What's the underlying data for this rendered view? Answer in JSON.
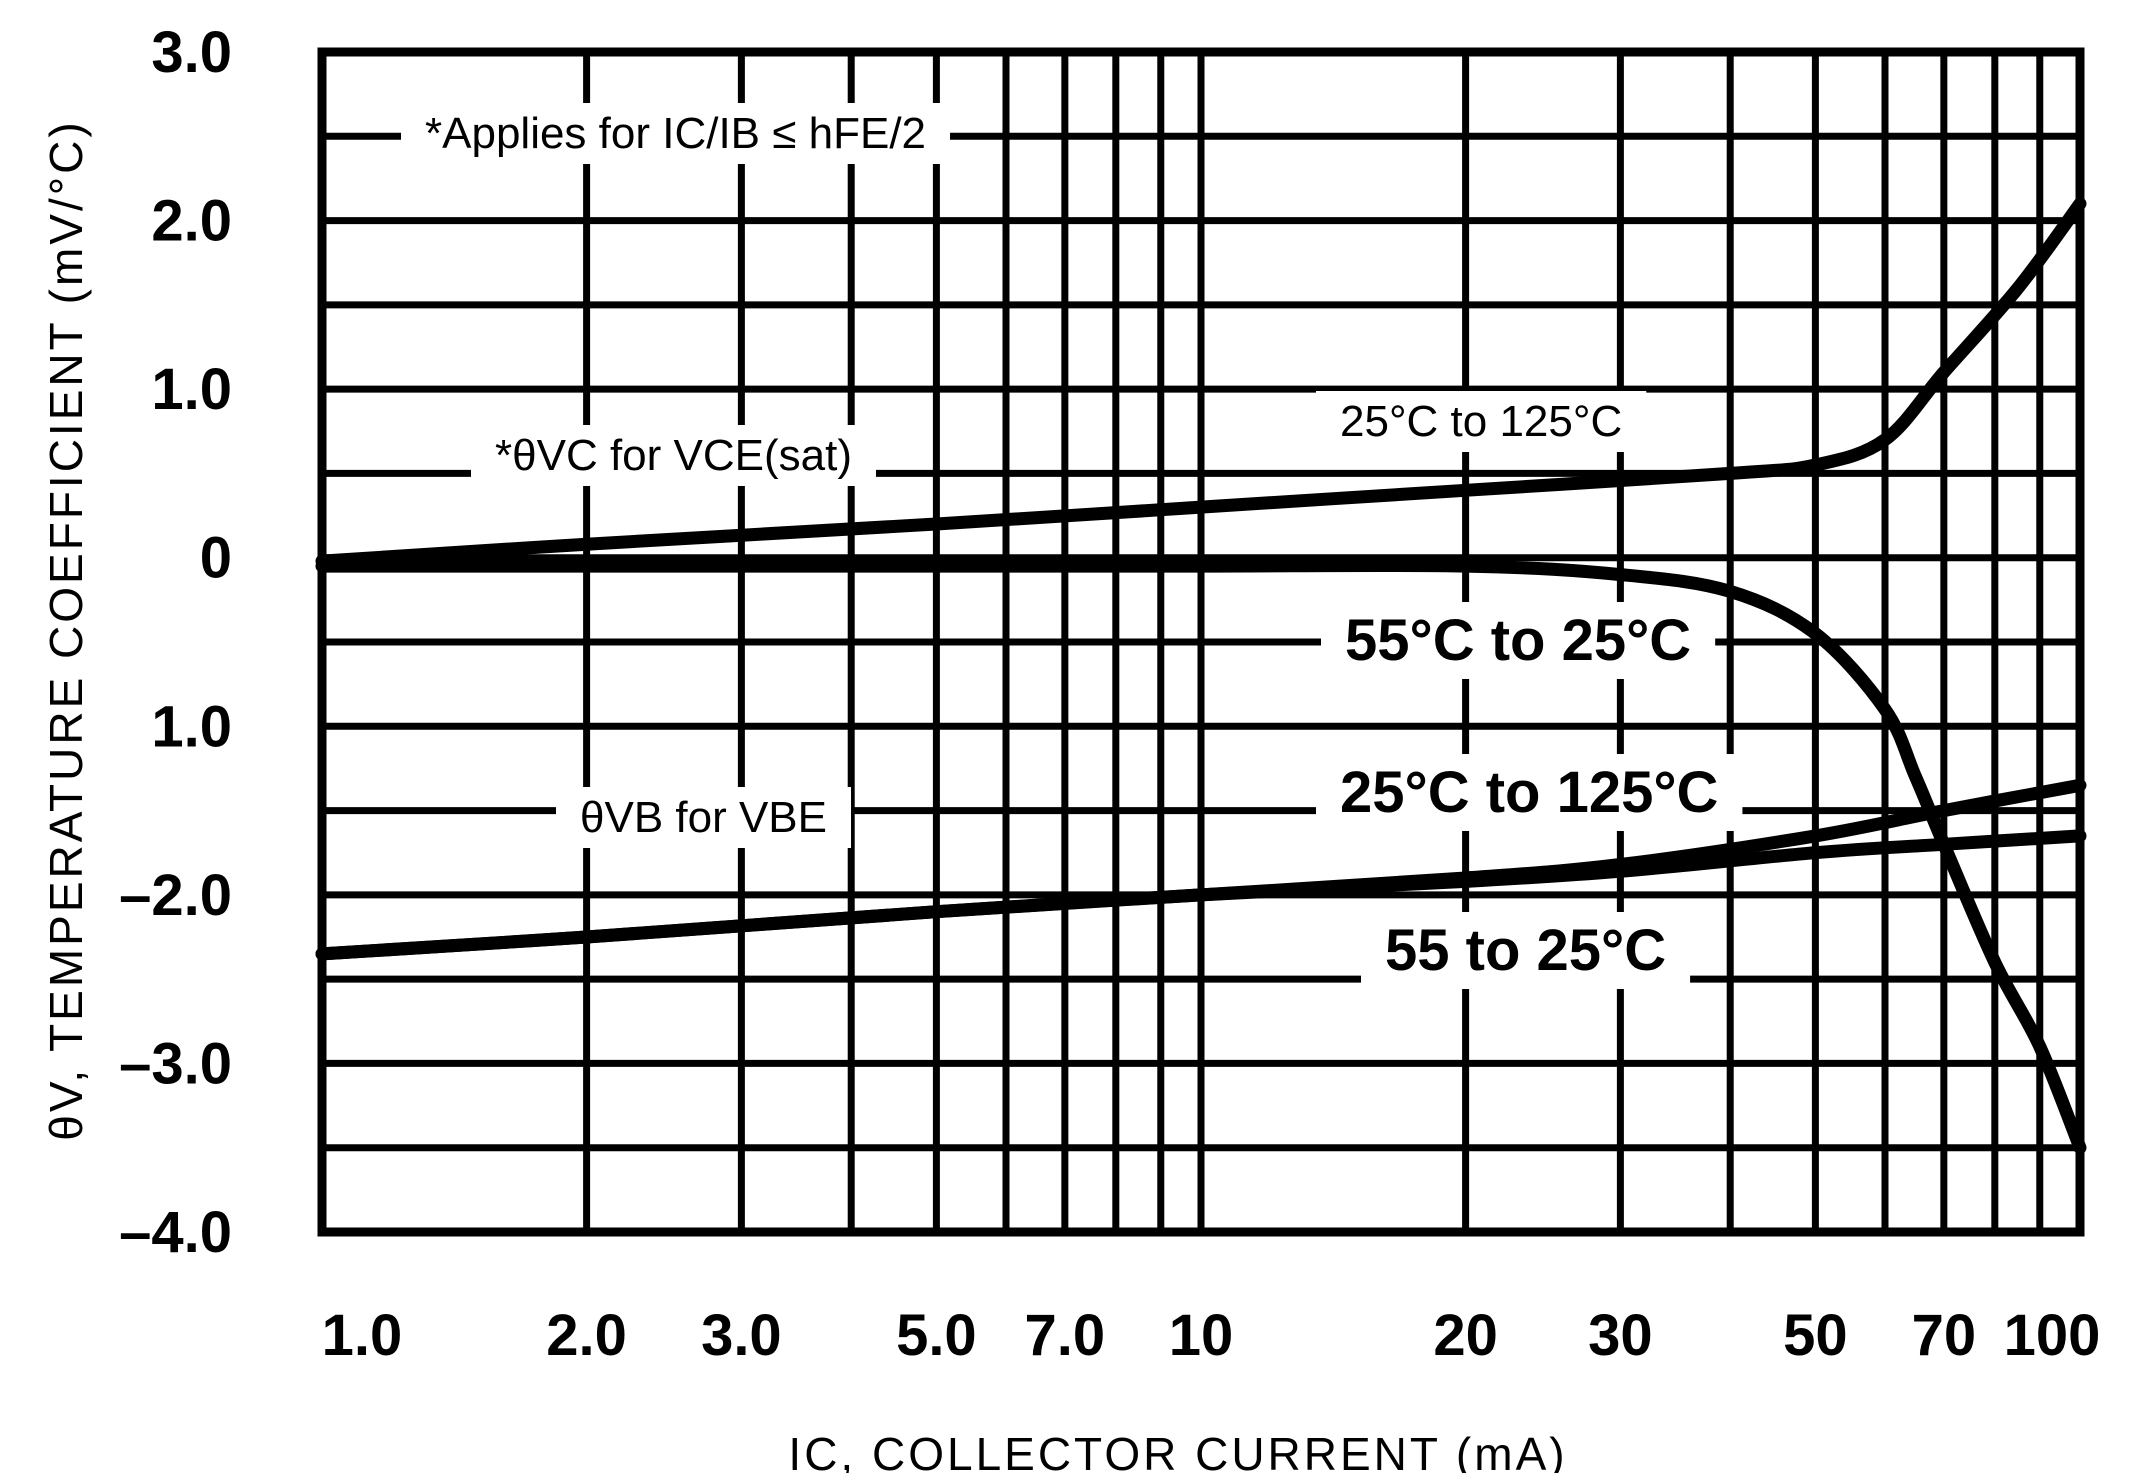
{
  "chart_data": {
    "type": "line",
    "title": "",
    "xlabel": "IC, COLLECTOR CURRENT (mA)",
    "ylabel": "θV, TEMPERATURE COEFFICIENT (mV/°C)",
    "x_scale": "log",
    "xlim": [
      1,
      100
    ],
    "ylim": [
      -4,
      3
    ],
    "grid": true,
    "x_ticks": [
      {
        "value": 1,
        "label": "1.0"
      },
      {
        "value": 2,
        "label": "2.0"
      },
      {
        "value": 3,
        "label": "3.0"
      },
      {
        "value": 5,
        "label": "5.0"
      },
      {
        "value": 7,
        "label": "7.0"
      },
      {
        "value": 10,
        "label": "10"
      },
      {
        "value": 20,
        "label": "20"
      },
      {
        "value": 30,
        "label": "30"
      },
      {
        "value": 50,
        "label": "50"
      },
      {
        "value": 70,
        "label": "70"
      },
      {
        "value": 100,
        "label": "100"
      }
    ],
    "y_ticks": [
      {
        "value": 3,
        "label": "3.0"
      },
      {
        "value": 2,
        "label": "2.0"
      },
      {
        "value": 1,
        "label": "1.0"
      },
      {
        "value": 0,
        "label": "0"
      },
      {
        "value": -1,
        "label": "1.0"
      },
      {
        "value": -2,
        "label": "–2.0"
      },
      {
        "value": -3,
        "label": "–3.0"
      },
      {
        "value": -4,
        "label": "–4.0"
      }
    ],
    "annotations": {
      "applies": "*Applies for IC/IB ≤ hFE/2",
      "vc_group": "*θVC for VCE(sat)",
      "vb_group": "θVB for VBE"
    },
    "series": [
      {
        "name": "25°C to 125°C",
        "group": "VC",
        "x": [
          1,
          2,
          5,
          10,
          20,
          40,
          50,
          60,
          70,
          85,
          100
        ],
        "y": [
          -0.02,
          0.08,
          0.2,
          0.3,
          0.4,
          0.5,
          0.55,
          0.7,
          1.1,
          1.6,
          2.1
        ]
      },
      {
        "name": "55°C to 25°C",
        "group": "VC",
        "x": [
          1,
          5,
          10,
          20,
          30,
          40,
          50,
          60,
          65,
          70,
          80,
          90,
          100
        ],
        "y": [
          -0.05,
          -0.05,
          -0.05,
          -0.05,
          -0.1,
          -0.2,
          -0.45,
          -0.9,
          -1.3,
          -1.7,
          -2.4,
          -2.9,
          -3.5
        ]
      },
      {
        "name": "25°C to 125°C",
        "group": "VB",
        "x": [
          1,
          2,
          5,
          10,
          20,
          30,
          50,
          70,
          100
        ],
        "y": [
          -2.35,
          -2.25,
          -2.1,
          -2.0,
          -1.9,
          -1.82,
          -1.65,
          -1.5,
          -1.35
        ]
      },
      {
        "name": "55 to 25°C",
        "group": "VB",
        "x": [
          1,
          2,
          5,
          10,
          20,
          30,
          50,
          70,
          100
        ],
        "y": [
          -2.35,
          -2.25,
          -2.1,
          -2.0,
          -1.92,
          -1.86,
          -1.75,
          -1.7,
          -1.65
        ]
      }
    ]
  }
}
